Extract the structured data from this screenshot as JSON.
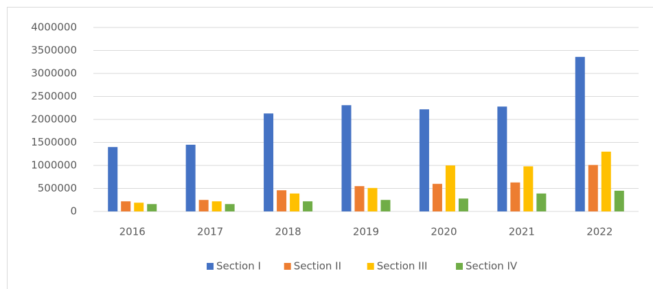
{
  "chart_data": {
    "type": "bar",
    "categories": [
      "2016",
      "2017",
      "2018",
      "2019",
      "2020",
      "2021",
      "2022"
    ],
    "series": [
      {
        "name": "Section I",
        "color": "#4472c4",
        "values": [
          1400000,
          1450000,
          2130000,
          2310000,
          2220000,
          2280000,
          3360000
        ]
      },
      {
        "name": "Section II",
        "color": "#ed7d31",
        "values": [
          220000,
          250000,
          460000,
          550000,
          600000,
          630000,
          1010000
        ]
      },
      {
        "name": "Section III",
        "color": "#ffc000",
        "values": [
          190000,
          220000,
          390000,
          510000,
          1000000,
          980000,
          1300000
        ]
      },
      {
        "name": "Section IV",
        "color": "#70ad47",
        "values": [
          160000,
          160000,
          220000,
          250000,
          280000,
          390000,
          450000
        ]
      }
    ],
    "ylim": [
      0,
      4000000
    ],
    "yticks": [
      0,
      500000,
      1000000,
      1500000,
      2000000,
      2500000,
      3000000,
      3500000,
      4000000
    ],
    "grid": true,
    "legend": "bottom"
  }
}
